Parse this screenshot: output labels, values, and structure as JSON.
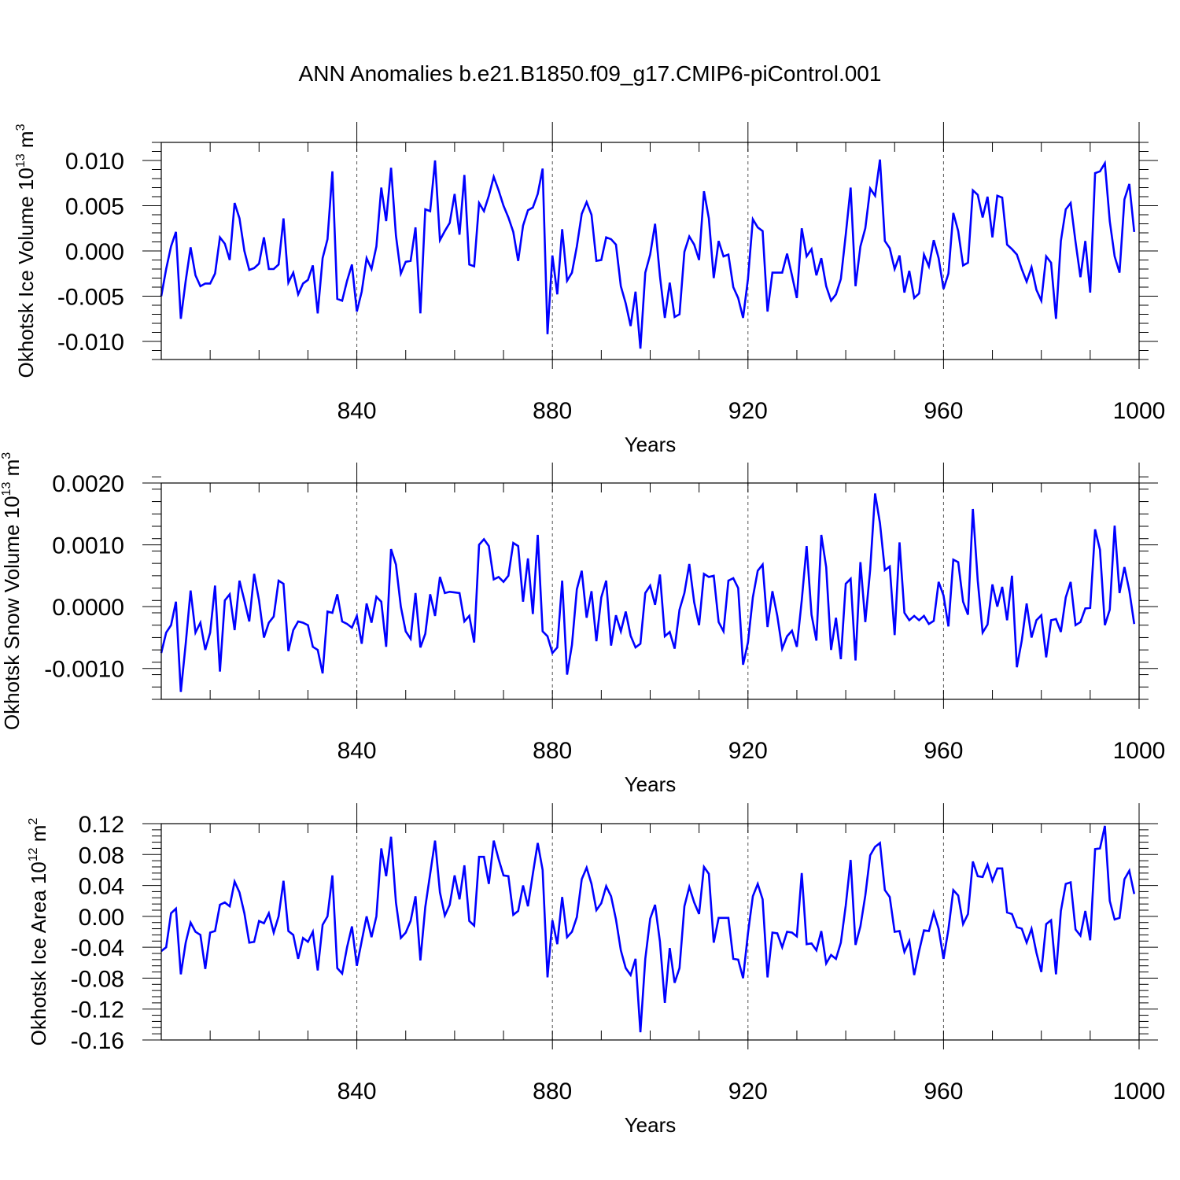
{
  "title": "ANN Anomalies b.e21.B1850.f09_g17.CMIP6-piControl.001",
  "colors": {
    "series": "#0000ff",
    "axis": "#000000",
    "grid": "#555555"
  },
  "chart_data": [
    {
      "type": "line",
      "ylabel": "Okhotsk Ice Volume 10",
      "ylabel_exp": "13",
      "ylabel_unit": " m",
      "ylabel_unit_exp": "3",
      "xlabel": "Years",
      "xlim": [
        800,
        1000
      ],
      "ylim": [
        -0.012,
        0.012
      ],
      "xticks": [
        840,
        880,
        920,
        960,
        1000
      ],
      "yticks": [
        0.01,
        0.005,
        0.0,
        -0.005,
        -0.01
      ],
      "ytick_labels": [
        "0.010",
        "0.005",
        "0.000",
        "-0.005",
        "-0.010"
      ],
      "x_start": 800,
      "values": [
        -0.005,
        -0.002,
        0.0005,
        0.0021,
        -0.0075,
        -0.0033,
        0.0004,
        -0.0027,
        -0.0039,
        -0.0036,
        -0.0036,
        -0.0025,
        0.0015,
        0.0008,
        -0.001,
        0.0053,
        0.0036,
        0.0,
        -0.0021,
        -0.0019,
        -0.0014,
        0.0015,
        -0.002,
        -0.002,
        -0.0015,
        0.0036,
        -0.0035,
        -0.0024,
        -0.0048,
        -0.0036,
        -0.0032,
        -0.0016,
        -0.0069,
        -0.0008,
        0.0013,
        0.0088,
        -0.0053,
        -0.0055,
        -0.0033,
        -0.0015,
        -0.0067,
        -0.0045,
        -0.0008,
        -0.002,
        0.0005,
        0.007,
        0.0033,
        0.0092,
        0.0017,
        -0.0025,
        -0.0012,
        -0.0011,
        0.0026,
        -0.0069,
        0.0046,
        0.0044,
        0.01,
        0.0012,
        0.0022,
        0.0031,
        0.0063,
        0.0018,
        0.0084,
        -0.0015,
        -0.0017,
        0.0053,
        0.0044,
        0.0061,
        0.0082,
        0.0067,
        0.005,
        0.0037,
        0.0021,
        -0.0011,
        0.0028,
        0.0045,
        0.0048,
        0.0063,
        0.0091,
        -0.0092,
        -0.0005,
        -0.0048,
        0.0024,
        -0.0033,
        -0.0024,
        0.0005,
        0.0041,
        0.0054,
        0.004,
        -0.0011,
        -0.001,
        0.0015,
        0.0013,
        0.0007,
        -0.0039,
        -0.0058,
        -0.0083,
        -0.0045,
        -0.0108,
        -0.0024,
        -0.0004,
        0.003,
        -0.0028,
        -0.0074,
        -0.0035,
        -0.0073,
        -0.007,
        -0.0001,
        0.0016,
        0.0007,
        -0.001,
        0.0066,
        0.0036,
        -0.003,
        0.0011,
        -0.0006,
        -0.0004,
        -0.004,
        -0.0052,
        -0.0074,
        -0.0031,
        0.0035,
        0.0026,
        0.0022,
        -0.0067,
        -0.0024,
        -0.0024,
        -0.0024,
        -0.0003,
        -0.0027,
        -0.0052,
        0.0025,
        -0.0006,
        0.0002,
        -0.0027,
        -0.0008,
        -0.0039,
        -0.0055,
        -0.0048,
        -0.0031,
        0.0018,
        0.007,
        -0.0039,
        0.0005,
        0.0025,
        0.0069,
        0.0061,
        0.0101,
        0.0011,
        0.0003,
        -0.002,
        -0.0005,
        -0.0046,
        -0.0022,
        -0.0052,
        -0.0047,
        -0.0004,
        -0.0017,
        0.0012,
        -0.0008,
        -0.0042,
        -0.0025,
        0.0042,
        0.0022,
        -0.0016,
        -0.0013,
        0.0067,
        0.0062,
        0.0037,
        0.006,
        0.0015,
        0.0061,
        0.0059,
        0.0007,
        0.0002,
        -0.0004,
        -0.002,
        -0.0034,
        -0.0018,
        -0.0043,
        -0.0055,
        -0.0006,
        -0.0013,
        -0.0075,
        0.0011,
        0.0046,
        0.0053,
        0.001,
        -0.0029,
        0.0011,
        -0.0046,
        0.0086,
        0.0088,
        0.0097,
        0.0033,
        -0.0006,
        -0.0024,
        0.0057,
        0.0074,
        0.0021
      ]
    },
    {
      "type": "line",
      "ylabel": "Okhotsk Snow Volume 10",
      "ylabel_exp": "13",
      "ylabel_unit": " m",
      "ylabel_unit_exp": "3",
      "xlabel": "Years",
      "xlim": [
        800,
        1000
      ],
      "ylim": [
        -0.0015,
        0.002
      ],
      "xticks": [
        840,
        880,
        920,
        960,
        1000
      ],
      "yticks": [
        0.002,
        0.001,
        0.0,
        -0.001
      ],
      "ytick_labels": [
        "0.0020",
        "0.0010",
        "0.0000",
        "-0.0010"
      ],
      "x_start": 800,
      "values": [
        -0.00075,
        -0.00042,
        -0.0003,
        8e-05,
        -0.00138,
        -0.0006,
        0.00026,
        -0.00042,
        -0.00026,
        -0.0007,
        -0.00042,
        0.00034,
        -0.00105,
        0.0001,
        0.0002,
        -0.00038,
        0.00042,
        0.0001,
        -0.00024,
        0.00053,
        0.0001,
        -0.0005,
        -0.00026,
        -0.00016,
        0.00042,
        0.00037,
        -0.00072,
        -0.00038,
        -0.00024,
        -0.00026,
        -0.0003,
        -0.00065,
        -0.0007,
        -0.00108,
        -8e-05,
        -0.0001,
        0.0002,
        -0.00024,
        -0.00028,
        -0.00034,
        -0.00015,
        -0.0006,
        5e-05,
        -0.00026,
        0.00016,
        8e-05,
        -0.00065,
        0.00093,
        0.00068,
        0.0,
        -0.0004,
        -0.00052,
        0.00022,
        -0.00066,
        -0.00044,
        0.0002,
        -0.00015,
        0.00048,
        0.00022,
        0.00024,
        0.00023,
        0.00022,
        -0.00024,
        -0.00015,
        -0.00058,
        0.001,
        0.00109,
        0.00098,
        0.00044,
        0.00048,
        0.0004,
        0.0005,
        0.00103,
        0.00098,
        8e-05,
        0.00078,
        -0.00012,
        0.00116,
        -0.0004,
        -0.00048,
        -0.00075,
        -0.00066,
        0.00042,
        -0.0011,
        -0.00062,
        0.00028,
        0.00058,
        -0.00018,
        0.00025,
        -0.00056,
        0.00015,
        0.00042,
        -0.00063,
        -0.00014,
        -0.0004,
        -8e-05,
        -0.00047,
        -0.00066,
        -0.0006,
        0.00022,
        0.00034,
        3e-05,
        0.00052,
        -0.00048,
        -0.00041,
        -0.00068,
        -5e-05,
        0.00022,
        0.00069,
        7e-05,
        -0.0003,
        0.00053,
        0.00048,
        0.0005,
        -0.00025,
        -0.0004,
        0.00042,
        0.00046,
        0.0003,
        -0.00094,
        -0.00058,
        0.00015,
        0.00058,
        0.00068,
        -0.00033,
        0.00025,
        -0.00015,
        -0.00068,
        -0.00048,
        -0.00039,
        -0.00065,
        0.0001,
        0.00098,
        -0.00013,
        -0.00055,
        0.00116,
        0.00064,
        -0.0007,
        -0.00018,
        -0.00085,
        0.00037,
        0.00045,
        -0.00087,
        0.00072,
        -0.00025,
        0.0006,
        0.00183,
        0.00135,
        0.00059,
        0.00065,
        -0.00046,
        0.00104,
        -0.0001,
        -0.00022,
        -0.00015,
        -0.00022,
        -0.00015,
        -0.00028,
        -0.00023,
        0.0004,
        0.00018,
        -0.00032,
        0.00076,
        0.00072,
        8e-05,
        -0.00013,
        0.00158,
        0.00042,
        -0.00042,
        -0.00029,
        0.00036,
        0.0,
        0.00032,
        -0.00022,
        0.0005,
        -0.00098,
        -0.00055,
        5e-05,
        -0.0005,
        -0.00022,
        -0.00014,
        -0.00082,
        -0.00022,
        -0.0002,
        -0.00041,
        0.00015,
        0.0004,
        -0.0003,
        -0.00025,
        -3e-05,
        -2e-05,
        0.00125,
        0.00092,
        -0.0003,
        -5e-05,
        0.00131,
        0.00022,
        0.00064,
        0.00026,
        -0.00028
      ]
    },
    {
      "type": "line",
      "ylabel": "Okhotsk Ice Area 10",
      "ylabel_exp": "12",
      "ylabel_unit": " m",
      "ylabel_unit_exp": "2",
      "xlabel": "Years",
      "xlim": [
        800,
        1000
      ],
      "ylim": [
        -0.16,
        0.12
      ],
      "xticks": [
        840,
        880,
        920,
        960,
        1000
      ],
      "yticks": [
        0.12,
        0.08,
        0.04,
        0.0,
        -0.04,
        -0.08,
        -0.12,
        -0.16
      ],
      "ytick_labels": [
        "0.12",
        "0.08",
        "0.04",
        "0.00",
        "-0.04",
        "-0.08",
        "-0.12",
        "-0.16"
      ],
      "x_start": 800,
      "values": [
        -0.045,
        -0.04,
        0.004,
        0.01,
        -0.075,
        -0.034,
        -0.008,
        -0.02,
        -0.024,
        -0.068,
        -0.021,
        -0.019,
        0.015,
        0.018,
        0.013,
        0.045,
        0.031,
        0.004,
        -0.034,
        -0.033,
        -0.006,
        -0.009,
        0.004,
        -0.021,
        0.0,
        0.046,
        -0.019,
        -0.024,
        -0.055,
        -0.028,
        -0.033,
        -0.02,
        -0.07,
        -0.011,
        0.0,
        0.053,
        -0.067,
        -0.074,
        -0.04,
        -0.013,
        -0.064,
        -0.032,
        0.0,
        -0.027,
        0.0,
        0.088,
        0.052,
        0.103,
        0.018,
        -0.028,
        -0.021,
        -0.006,
        0.026,
        -0.057,
        0.012,
        0.055,
        0.098,
        0.031,
        0.001,
        0.015,
        0.053,
        0.022,
        0.066,
        -0.006,
        -0.012,
        0.077,
        0.077,
        0.042,
        0.098,
        0.074,
        0.053,
        0.052,
        0.002,
        0.007,
        0.04,
        0.013,
        0.055,
        0.095,
        0.06,
        -0.079,
        -0.005,
        -0.036,
        0.025,
        -0.027,
        -0.02,
        -0.001,
        0.048,
        0.063,
        0.042,
        0.008,
        0.017,
        0.039,
        0.026,
        -0.004,
        -0.044,
        -0.067,
        -0.076,
        -0.055,
        -0.15,
        -0.055,
        -0.003,
        0.015,
        -0.033,
        -0.112,
        -0.041,
        -0.086,
        -0.067,
        0.013,
        0.038,
        0.018,
        0.003,
        0.064,
        0.055,
        -0.034,
        -0.002,
        -0.002,
        -0.002,
        -0.055,
        -0.056,
        -0.08,
        -0.022,
        0.026,
        0.042,
        0.022,
        -0.079,
        -0.021,
        -0.022,
        -0.04,
        -0.02,
        -0.021,
        -0.026,
        0.056,
        -0.036,
        -0.035,
        -0.044,
        -0.019,
        -0.061,
        -0.05,
        -0.055,
        -0.034,
        0.014,
        0.073,
        -0.037,
        -0.013,
        0.027,
        0.079,
        0.09,
        0.095,
        0.034,
        0.025,
        -0.02,
        -0.019,
        -0.046,
        -0.032,
        -0.076,
        -0.045,
        -0.018,
        -0.019,
        0.005,
        -0.016,
        -0.055,
        -0.017,
        0.034,
        0.027,
        -0.01,
        0.003,
        0.071,
        0.052,
        0.051,
        0.067,
        0.046,
        0.062,
        0.062,
        0.005,
        0.003,
        -0.014,
        -0.016,
        -0.034,
        -0.016,
        -0.047,
        -0.072,
        -0.01,
        -0.005,
        -0.075,
        0.007,
        0.042,
        0.044,
        -0.017,
        -0.025,
        0.007,
        -0.031,
        0.087,
        0.088,
        0.117,
        0.02,
        -0.004,
        -0.002,
        0.048,
        0.059,
        0.029
      ]
    }
  ]
}
